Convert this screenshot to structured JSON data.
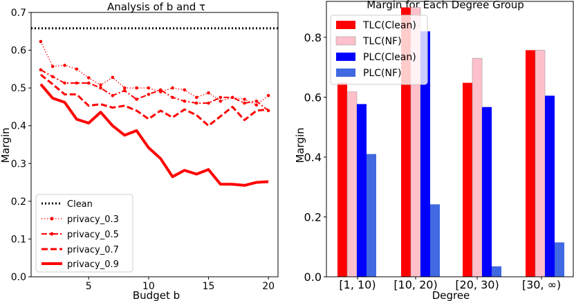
{
  "chart_data": [
    {
      "type": "line",
      "title": "Analysis of b and τ",
      "xlabel": "Budget b",
      "ylabel": "Margin",
      "xlim": [
        0.2,
        20.8
      ],
      "ylim": [
        0,
        0.7
      ],
      "xticks": [
        5,
        10,
        15,
        20
      ],
      "yticks": [
        0.0,
        0.1,
        0.2,
        0.3,
        0.4,
        0.5,
        0.6,
        0.7
      ],
      "x": [
        1,
        2,
        3,
        4,
        5,
        6,
        7,
        8,
        9,
        10,
        11,
        12,
        13,
        14,
        15,
        16,
        17,
        18,
        19,
        20
      ],
      "grid": false,
      "legend_position": "lower-left",
      "hline": {
        "name": "Clean",
        "value": 0.658,
        "color": "#000000"
      },
      "series": [
        {
          "name": "privacy_0.3",
          "style": "dotted-marker",
          "color": "#ff0000",
          "values": [
            0.623,
            0.557,
            0.56,
            0.55,
            0.527,
            0.508,
            0.528,
            0.5,
            0.5,
            0.5,
            0.49,
            0.5,
            0.495,
            0.475,
            0.487,
            0.465,
            0.475,
            0.47,
            0.455,
            0.48
          ]
        },
        {
          "name": "privacy_0.5",
          "style": "dashdot-marker",
          "color": "#ff0000",
          "values": [
            0.548,
            0.53,
            0.513,
            0.513,
            0.513,
            0.5,
            0.48,
            0.493,
            0.47,
            0.483,
            0.495,
            0.475,
            0.465,
            0.46,
            0.46,
            0.475,
            0.475,
            0.46,
            0.465,
            0.44
          ]
        },
        {
          "name": "privacy_0.7",
          "style": "dashed",
          "color": "#ff0000",
          "values": [
            0.535,
            0.51,
            0.483,
            0.483,
            0.453,
            0.457,
            0.448,
            0.453,
            0.44,
            0.418,
            0.44,
            0.422,
            0.443,
            0.428,
            0.4,
            0.425,
            0.45,
            0.415,
            0.44,
            0.443
          ]
        },
        {
          "name": "privacy_0.9",
          "style": "solid-thick",
          "color": "#ff0000",
          "values": [
            0.51,
            0.473,
            0.462,
            0.417,
            0.407,
            0.436,
            0.4,
            0.375,
            0.387,
            0.342,
            0.313,
            0.265,
            0.282,
            0.272,
            0.284,
            0.245,
            0.245,
            0.242,
            0.25,
            0.252
          ]
        }
      ]
    },
    {
      "type": "bar",
      "title": "Margin for Each Degree Group",
      "xlabel": "Degree",
      "ylabel": "Margin",
      "ylim": [
        0,
        0.92
      ],
      "yticks": [
        0.0,
        0.2,
        0.4,
        0.6,
        0.8
      ],
      "categories": [
        "[1, 10)",
        "[10, 20)",
        "[20, 30)",
        "[30, ∞)"
      ],
      "grid": false,
      "legend_position": "upper-left",
      "series": [
        {
          "name": "TLC(Clean)",
          "color": "#ff0000",
          "values": [
            0.648,
            0.9,
            0.648,
            0.757
          ]
        },
        {
          "name": "TLC(NF)",
          "color": "#ffc0cb",
          "values": [
            0.618,
            0.9,
            0.73,
            0.757
          ]
        },
        {
          "name": "PLC(Clean)",
          "color": "#0000ff",
          "values": [
            0.577,
            0.82,
            0.567,
            0.605
          ]
        },
        {
          "name": "PLC(NF)",
          "color": "#4169e1",
          "values": [
            0.41,
            0.242,
            0.035,
            0.115
          ]
        }
      ]
    }
  ]
}
